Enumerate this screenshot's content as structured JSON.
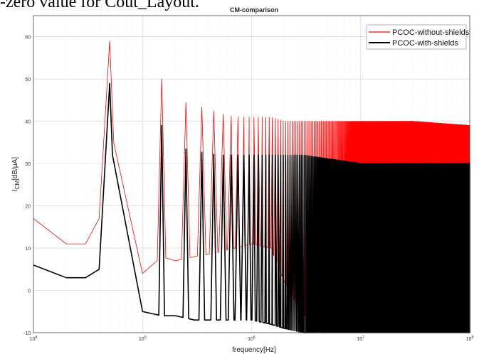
{
  "header_text": "-zero value for Cout_Layout.",
  "chart_data": {
    "type": "line",
    "title": "CM-comparison",
    "xlabel": "frequency[Hz]",
    "ylabel_main": "I",
    "ylabel_sub": "CM",
    "ylabel_unit": "[dB/μA]",
    "xscale": "log",
    "xlim": [
      10000,
      100000000
    ],
    "ylim": [
      -10,
      65
    ],
    "grid": true,
    "legend_position": "top-right",
    "x_ticks": [
      {
        "base": "10",
        "exp": "4"
      },
      {
        "base": "10",
        "exp": "5"
      },
      {
        "base": "10",
        "exp": "6"
      },
      {
        "base": "10",
        "exp": "7"
      },
      {
        "base": "10",
        "exp": "8"
      }
    ],
    "y_ticks": [
      "-10",
      "0",
      "10",
      "20",
      "30",
      "40",
      "50",
      "60"
    ],
    "series": [
      {
        "name": "PCOC-without-shields",
        "color": "#ff0000",
        "envelope": {
          "x": [
            10000,
            20000,
            30000,
            40000,
            50000,
            60000,
            100000,
            150000,
            200000,
            300000,
            500000,
            700000,
            1000000,
            1500000,
            2000000,
            3000000,
            10000000,
            30000000,
            100000000
          ],
          "upper": [
            17,
            11,
            11,
            17,
            59,
            12,
            32,
            50,
            45,
            44,
            42,
            41,
            41,
            41,
            40,
            40,
            40,
            40,
            39
          ],
          "lower": [
            17,
            11,
            11,
            17,
            59,
            8,
            4,
            8,
            7,
            8,
            9,
            10,
            11,
            10,
            2,
            -6,
            -8,
            -8,
            -8
          ]
        }
      },
      {
        "name": "PCOC-with-shields",
        "color": "#000000",
        "envelope": {
          "x": [
            10000,
            20000,
            30000,
            40000,
            50000,
            60000,
            100000,
            150000,
            200000,
            300000,
            500000,
            700000,
            1000000,
            1500000,
            2000000,
            3000000,
            10000000,
            30000000,
            100000000
          ],
          "upper": [
            6,
            3,
            3,
            5,
            49,
            5,
            22,
            39,
            34,
            33,
            32,
            32,
            32,
            32,
            32,
            32,
            30,
            30,
            30
          ],
          "lower": [
            6,
            3,
            3,
            5,
            49,
            -4,
            -5,
            -6,
            -6,
            -7,
            -7,
            -7,
            -7,
            -8,
            -9,
            -10,
            -10,
            -10,
            -10
          ]
        }
      }
    ]
  }
}
